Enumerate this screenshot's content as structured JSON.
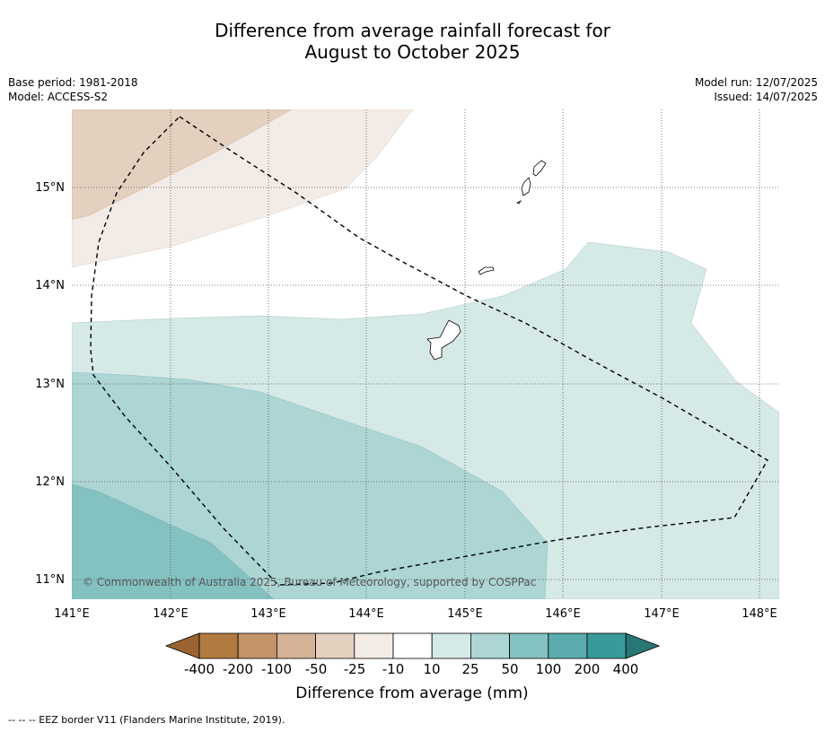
{
  "title_line1": "Difference from average rainfall forecast for",
  "title_line2": "August to October 2025",
  "base_period": "Base period: 1981-2018",
  "model": "Model: ACCESS-S2",
  "model_run": "Model run: 12/07/2025",
  "issued": "Issued: 14/07/2025",
  "copyright": "© Commonwealth of Australia 2025, Bureau of Meteorology, supported by COSPPac",
  "footnote": "--  --  -- EEZ border V11 (Flanders Marine Institute, 2019).",
  "map": {
    "lon_ticks": [
      "141°E",
      "142°E",
      "143°E",
      "144°E",
      "145°E",
      "146°E",
      "147°E",
      "148°E"
    ],
    "lat_ticks": [
      "15°N",
      "14°N",
      "13°N",
      "12°N",
      "11°N"
    ],
    "lon_range": [
      141.0,
      148.2
    ],
    "lat_range": [
      10.8,
      15.8
    ]
  },
  "colorbar": {
    "title": "Difference from average (mm)",
    "labels": [
      "-400",
      "-200",
      "-100",
      "-50",
      "-25",
      "-10",
      "10",
      "25",
      "50",
      "100",
      "200",
      "400"
    ],
    "colors": [
      "#9a6432",
      "#b07a40",
      "#c29468",
      "#d4b295",
      "#e4d0bf",
      "#f3ece6",
      "#ffffff",
      "#d5e9e7",
      "#acd5d4",
      "#84c2c1",
      "#5bacac",
      "#389b99",
      "#277775"
    ]
  }
}
